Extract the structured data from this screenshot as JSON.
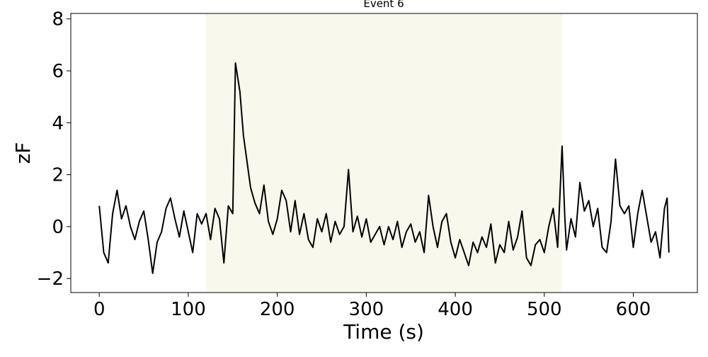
{
  "chart_data": {
    "type": "line",
    "title": "Event 6",
    "x_label": "Time (s)",
    "y_label": "zF",
    "color": "#000000",
    "shaded_span": [
      120,
      520
    ],
    "shaded_color": "#f8f8ec",
    "xlim": [
      -32,
      672
    ],
    "ylim": [
      -2.54,
      8.21
    ],
    "xticks": [
      0,
      100,
      200,
      300,
      400,
      500,
      600
    ],
    "yticks": [
      {
        "value": -2,
        "label": "−2"
      },
      0,
      2,
      4,
      6,
      8
    ],
    "x": [
      0,
      5,
      10,
      15,
      20,
      25,
      30,
      35,
      40,
      45,
      50,
      55,
      60,
      65,
      70,
      75,
      80,
      85,
      90,
      95,
      100,
      105,
      110,
      115,
      120,
      125,
      130,
      135,
      140,
      145,
      150,
      153,
      158,
      162,
      166,
      170,
      175,
      180,
      185,
      190,
      195,
      200,
      205,
      210,
      215,
      220,
      225,
      230,
      235,
      240,
      245,
      250,
      255,
      260,
      265,
      270,
      275,
      280,
      285,
      290,
      295,
      300,
      305,
      310,
      315,
      320,
      325,
      330,
      335,
      340,
      345,
      350,
      355,
      360,
      365,
      370,
      375,
      380,
      385,
      390,
      395,
      400,
      405,
      410,
      415,
      420,
      425,
      430,
      435,
      440,
      445,
      450,
      455,
      460,
      465,
      470,
      475,
      480,
      485,
      490,
      495,
      500,
      505,
      510,
      515,
      520,
      523,
      525,
      530,
      535,
      540,
      545,
      550,
      555,
      560,
      565,
      570,
      575,
      580,
      585,
      590,
      595,
      600,
      605,
      610,
      615,
      620,
      625,
      630,
      635,
      638,
      640
    ],
    "values": [
      0.8,
      -1.0,
      -1.4,
      0.5,
      1.4,
      0.3,
      0.8,
      0.0,
      -0.5,
      0.2,
      0.6,
      -0.5,
      -1.8,
      -0.6,
      -0.2,
      0.7,
      1.1,
      0.3,
      -0.4,
      0.6,
      -0.2,
      -1.0,
      0.5,
      0.1,
      0.5,
      -0.5,
      0.7,
      0.3,
      -1.4,
      0.8,
      0.5,
      6.3,
      5.2,
      3.5,
      2.5,
      1.5,
      0.9,
      0.5,
      1.6,
      0.2,
      -0.3,
      0.3,
      1.4,
      1.0,
      -0.2,
      1.0,
      -0.3,
      0.5,
      -0.5,
      -0.8,
      0.3,
      -0.2,
      0.5,
      -0.6,
      0.2,
      -0.3,
      0.0,
      2.2,
      -0.2,
      0.4,
      -0.4,
      0.3,
      -0.6,
      -0.3,
      0.0,
      -0.7,
      0.0,
      -0.5,
      0.2,
      -0.8,
      -0.2,
      0.1,
      -0.6,
      -0.2,
      -1.0,
      1.2,
      0.0,
      -0.8,
      0.2,
      0.5,
      -0.6,
      -1.2,
      -0.5,
      -1.0,
      -1.5,
      -0.6,
      -1.0,
      -0.4,
      -0.8,
      0.1,
      -1.4,
      -0.7,
      -1.0,
      0.2,
      -0.9,
      -0.4,
      0.6,
      -1.2,
      -1.5,
      -0.7,
      -0.5,
      -1.0,
      0.0,
      0.7,
      -0.8,
      3.1,
      0.4,
      -0.9,
      0.3,
      -0.4,
      1.7,
      0.6,
      1.0,
      0.0,
      0.7,
      -0.8,
      -1.0,
      0.2,
      2.6,
      0.8,
      0.5,
      0.8,
      -0.8,
      0.5,
      1.4,
      0.4,
      -0.6,
      -0.2,
      -1.2,
      0.7,
      1.1,
      -1.0
    ]
  }
}
